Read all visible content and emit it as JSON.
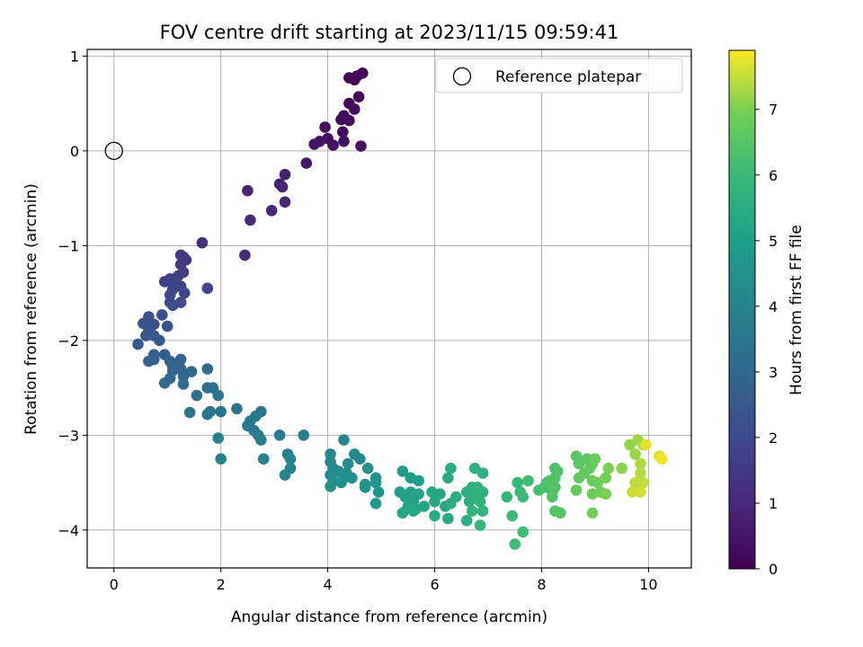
{
  "chart_data": {
    "type": "scatter",
    "title": "FOV centre drift starting at 2023/11/15 09:59:41",
    "xlabel": "Angular distance from reference (arcmin)",
    "ylabel": "Rotation from reference (arcmin)",
    "colorbar_label": "Hours from first FF file",
    "colormap": "viridis",
    "xlim": [
      -0.5,
      10.8
    ],
    "ylim": [
      -4.4,
      1.07
    ],
    "clim": [
      0,
      7.9
    ],
    "xticks": [
      "0",
      "2",
      "4",
      "6",
      "8",
      "10"
    ],
    "yticks": [
      "1",
      "0",
      "−1",
      "−2",
      "−3",
      "−4"
    ],
    "colorbar_ticks": [
      "0",
      "1",
      "2",
      "3",
      "4",
      "5",
      "6",
      "7"
    ],
    "grid": true,
    "legend": {
      "placement": "top-right",
      "label": "Reference platepar"
    },
    "reference_point": {
      "x": 0,
      "y": 0
    },
    "points": [
      [
        4.65,
        0.82,
        0.05
      ],
      [
        4.55,
        0.79,
        0.08
      ],
      [
        4.4,
        0.77,
        0.1
      ],
      [
        4.5,
        0.75,
        0.12
      ],
      [
        4.58,
        0.57,
        0.15
      ],
      [
        4.4,
        0.5,
        0.18
      ],
      [
        4.5,
        0.44,
        0.2
      ],
      [
        4.3,
        0.37,
        0.23
      ],
      [
        4.25,
        0.33,
        0.26
      ],
      [
        4.4,
        0.32,
        0.28
      ],
      [
        4.28,
        0.2,
        0.3
      ],
      [
        3.95,
        0.25,
        0.33
      ],
      [
        4.0,
        0.13,
        0.36
      ],
      [
        4.3,
        0.1,
        0.38
      ],
      [
        3.85,
        0.1,
        0.4
      ],
      [
        4.1,
        0.06,
        0.42
      ],
      [
        3.75,
        0.07,
        0.45
      ],
      [
        4.62,
        0.05,
        0.48
      ],
      [
        3.6,
        -0.13,
        0.6
      ],
      [
        3.2,
        -0.25,
        0.75
      ],
      [
        3.1,
        -0.35,
        0.8
      ],
      [
        3.15,
        -0.38,
        0.85
      ],
      [
        2.5,
        -0.42,
        0.9
      ],
      [
        3.2,
        -0.54,
        0.95
      ],
      [
        2.95,
        -0.63,
        1.0
      ],
      [
        2.55,
        -0.73,
        1.05
      ],
      [
        2.45,
        -1.1,
        1.1
      ],
      [
        1.65,
        -0.97,
        1.3
      ],
      [
        1.3,
        -1.12,
        1.4
      ],
      [
        1.25,
        -1.1,
        1.45
      ],
      [
        1.35,
        -1.15,
        1.5
      ],
      [
        1.25,
        -1.2,
        1.55
      ],
      [
        1.3,
        -1.28,
        1.6
      ],
      [
        1.2,
        -1.32,
        1.65
      ],
      [
        1.05,
        -1.35,
        1.7
      ],
      [
        0.95,
        -1.38,
        1.75
      ],
      [
        1.15,
        -1.4,
        1.8
      ],
      [
        1.25,
        -1.43,
        1.85
      ],
      [
        1.75,
        -1.45,
        1.9
      ],
      [
        1.1,
        -1.46,
        1.9
      ],
      [
        1.32,
        -1.5,
        1.95
      ],
      [
        1.05,
        -1.52,
        2.0
      ],
      [
        1.25,
        -1.6,
        2.0
      ],
      [
        1.05,
        -1.6,
        2.05
      ],
      [
        1.1,
        -1.63,
        2.1
      ],
      [
        0.9,
        -1.73,
        2.2
      ],
      [
        0.65,
        -1.75,
        2.25
      ],
      [
        0.55,
        -1.82,
        2.3
      ],
      [
        0.75,
        -1.83,
        2.3
      ],
      [
        1.0,
        -1.85,
        2.35
      ],
      [
        0.65,
        -1.9,
        2.4
      ],
      [
        0.6,
        -1.95,
        2.45
      ],
      [
        0.75,
        -1.95,
        2.45
      ],
      [
        0.85,
        -2.0,
        2.5
      ],
      [
        0.45,
        -2.04,
        2.55
      ],
      [
        0.75,
        -2.15,
        2.6
      ],
      [
        0.95,
        -2.15,
        2.65
      ],
      [
        0.75,
        -2.2,
        2.7
      ],
      [
        0.65,
        -2.22,
        2.75
      ],
      [
        1.05,
        -2.22,
        2.75
      ],
      [
        1.25,
        -2.2,
        2.8
      ],
      [
        1.1,
        -2.28,
        2.85
      ],
      [
        1.25,
        -2.3,
        2.9
      ],
      [
        1.1,
        -2.32,
        2.9
      ],
      [
        1.3,
        -2.38,
        2.95
      ],
      [
        1.45,
        -2.33,
        3.0
      ],
      [
        1.75,
        -2.3,
        3.05
      ],
      [
        1.05,
        -2.4,
        3.0
      ],
      [
        0.95,
        -2.45,
        3.05
      ],
      [
        1.3,
        -2.46,
        3.1
      ],
      [
        1.75,
        -2.5,
        3.15
      ],
      [
        1.85,
        -2.5,
        3.2
      ],
      [
        1.55,
        -2.58,
        3.25
      ],
      [
        1.95,
        -2.58,
        3.3
      ],
      [
        2.3,
        -2.72,
        3.35
      ],
      [
        1.8,
        -2.75,
        3.4
      ],
      [
        1.42,
        -2.76,
        3.4
      ],
      [
        1.75,
        -2.78,
        3.45
      ],
      [
        2.0,
        -2.75,
        3.45
      ],
      [
        2.75,
        -2.75,
        3.5
      ],
      [
        2.65,
        -2.8,
        3.55
      ],
      [
        2.55,
        -2.85,
        3.6
      ],
      [
        2.5,
        -2.9,
        3.6
      ],
      [
        2.62,
        -2.95,
        3.65
      ],
      [
        2.7,
        -3.0,
        3.7
      ],
      [
        3.1,
        -3.0,
        3.7
      ],
      [
        3.55,
        -3.0,
        3.75
      ],
      [
        1.95,
        -3.03,
        3.75
      ],
      [
        2.75,
        -3.05,
        3.8
      ],
      [
        3.25,
        -3.2,
        3.85
      ],
      [
        3.3,
        -3.25,
        3.9
      ],
      [
        2.0,
        -3.25,
        3.9
      ],
      [
        2.8,
        -3.25,
        3.95
      ],
      [
        3.3,
        -3.35,
        3.95
      ],
      [
        3.2,
        -3.42,
        4.0
      ],
      [
        4.3,
        -3.05,
        4.05
      ],
      [
        4.05,
        -3.2,
        4.1
      ],
      [
        4.5,
        -3.2,
        4.15
      ],
      [
        4.6,
        -3.25,
        4.2
      ],
      [
        4.05,
        -3.28,
        4.2
      ],
      [
        4.38,
        -3.3,
        4.25
      ],
      [
        4.1,
        -3.35,
        4.3
      ],
      [
        4.2,
        -3.38,
        4.3
      ],
      [
        4.35,
        -3.4,
        4.35
      ],
      [
        4.05,
        -3.42,
        4.35
      ],
      [
        4.45,
        -3.45,
        4.4
      ],
      [
        4.3,
        -3.45,
        4.4
      ],
      [
        4.1,
        -3.48,
        4.45
      ],
      [
        4.25,
        -3.5,
        4.45
      ],
      [
        4.05,
        -3.54,
        4.5
      ],
      [
        4.75,
        -3.35,
        4.5
      ],
      [
        4.7,
        -3.52,
        4.55
      ],
      [
        4.9,
        -3.45,
        4.6
      ],
      [
        4.7,
        -3.55,
        4.6
      ],
      [
        4.9,
        -3.5,
        4.65
      ],
      [
        4.95,
        -3.6,
        4.7
      ],
      [
        4.9,
        -3.72,
        4.75
      ],
      [
        5.4,
        -3.38,
        4.85
      ],
      [
        5.55,
        -3.45,
        4.9
      ],
      [
        5.7,
        -3.48,
        4.95
      ],
      [
        5.35,
        -3.6,
        5.0
      ],
      [
        5.45,
        -3.65,
        5.05
      ],
      [
        5.55,
        -3.6,
        5.1
      ],
      [
        5.6,
        -3.7,
        5.1
      ],
      [
        5.7,
        -3.62,
        5.15
      ],
      [
        5.5,
        -3.75,
        5.15
      ],
      [
        5.65,
        -3.78,
        5.2
      ],
      [
        5.8,
        -3.75,
        5.2
      ],
      [
        5.4,
        -3.82,
        5.25
      ],
      [
        5.6,
        -3.8,
        5.25
      ],
      [
        5.95,
        -3.6,
        5.3
      ],
      [
        6.1,
        -3.62,
        5.3
      ],
      [
        6.0,
        -3.7,
        5.35
      ],
      [
        6.2,
        -3.75,
        5.35
      ],
      [
        6.0,
        -3.85,
        5.4
      ],
      [
        6.25,
        -3.88,
        5.4
      ],
      [
        6.3,
        -3.35,
        5.45
      ],
      [
        6.25,
        -3.45,
        5.45
      ],
      [
        6.4,
        -3.65,
        5.5
      ],
      [
        6.3,
        -3.72,
        5.5
      ],
      [
        6.6,
        -3.6,
        5.55
      ],
      [
        6.7,
        -3.55,
        5.55
      ],
      [
        6.65,
        -3.7,
        5.6
      ],
      [
        6.6,
        -3.9,
        5.6
      ],
      [
        6.75,
        -3.35,
        5.65
      ],
      [
        6.9,
        -3.4,
        5.65
      ],
      [
        6.8,
        -3.55,
        5.7
      ],
      [
        6.9,
        -3.6,
        5.7
      ],
      [
        6.75,
        -3.65,
        5.75
      ],
      [
        6.85,
        -3.7,
        5.75
      ],
      [
        6.7,
        -3.8,
        5.8
      ],
      [
        6.9,
        -3.8,
        5.8
      ],
      [
        6.85,
        -3.95,
        5.85
      ],
      [
        7.35,
        -3.65,
        5.9
      ],
      [
        7.55,
        -3.5,
        5.95
      ],
      [
        7.6,
        -3.6,
        6.0
      ],
      [
        7.65,
        -3.65,
        6.05
      ],
      [
        7.45,
        -3.85,
        6.05
      ],
      [
        7.65,
        -4.02,
        6.1
      ],
      [
        7.5,
        -4.15,
        6.1
      ],
      [
        7.75,
        -3.48,
        6.15
      ],
      [
        7.95,
        -3.58,
        6.2
      ],
      [
        8.05,
        -3.55,
        6.25
      ],
      [
        8.1,
        -3.5,
        6.3
      ],
      [
        8.2,
        -3.6,
        6.3
      ],
      [
        8.25,
        -3.35,
        6.35
      ],
      [
        8.3,
        -3.38,
        6.35
      ],
      [
        8.25,
        -3.45,
        6.4
      ],
      [
        8.15,
        -3.48,
        6.4
      ],
      [
        8.25,
        -3.55,
        6.45
      ],
      [
        8.2,
        -3.65,
        6.45
      ],
      [
        8.25,
        -3.8,
        6.5
      ],
      [
        8.35,
        -3.82,
        6.5
      ],
      [
        8.65,
        -3.22,
        6.55
      ],
      [
        8.7,
        -3.3,
        6.6
      ],
      [
        8.85,
        -3.25,
        6.6
      ],
      [
        8.7,
        -3.45,
        6.65
      ],
      [
        8.8,
        -3.4,
        6.7
      ],
      [
        8.65,
        -3.58,
        6.7
      ],
      [
        8.9,
        -3.35,
        6.75
      ],
      [
        8.95,
        -3.3,
        6.75
      ],
      [
        9.0,
        -3.25,
        6.8
      ],
      [
        8.95,
        -3.48,
        6.8
      ],
      [
        9.05,
        -3.5,
        6.85
      ],
      [
        8.95,
        -3.62,
        6.85
      ],
      [
        9.1,
        -3.6,
        6.9
      ],
      [
        9.2,
        -3.45,
        6.9
      ],
      [
        8.95,
        -3.82,
        6.95
      ],
      [
        9.25,
        -3.35,
        7.0
      ],
      [
        9.2,
        -3.62,
        7.0
      ],
      [
        9.5,
        -3.35,
        7.1
      ],
      [
        9.65,
        -3.1,
        7.15
      ],
      [
        9.75,
        -3.2,
        7.2
      ],
      [
        9.8,
        -3.05,
        7.25
      ],
      [
        9.9,
        -3.1,
        7.3
      ],
      [
        9.85,
        -3.3,
        7.35
      ],
      [
        9.85,
        -3.4,
        7.4
      ],
      [
        9.75,
        -3.5,
        7.45
      ],
      [
        9.9,
        -3.5,
        7.5
      ],
      [
        9.7,
        -3.6,
        7.55
      ],
      [
        9.85,
        -3.6,
        7.6
      ],
      [
        10.2,
        -3.22,
        7.7
      ],
      [
        10.25,
        -3.25,
        7.8
      ],
      [
        9.95,
        -3.1,
        7.75
      ]
    ]
  }
}
